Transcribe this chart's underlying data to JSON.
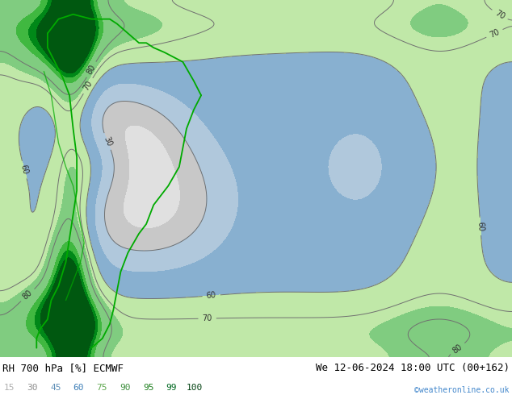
{
  "title_left": "RH 700 hPa [%] ECMWF",
  "title_right": "We 12-06-2024 18:00 UTC (00+162)",
  "credit": "©weatheronline.co.uk",
  "legend_values": [
    15,
    30,
    45,
    60,
    75,
    90,
    95,
    99,
    100
  ],
  "legend_label_colors": [
    "#b0b0b0",
    "#909090",
    "#6090b8",
    "#4080b8",
    "#60a850",
    "#409040",
    "#208020",
    "#006820",
    "#004010"
  ],
  "background_color": "#ffffff",
  "fig_width": 6.34,
  "fig_height": 4.9,
  "dpi": 100,
  "map_colors": [
    "#e0e0e0",
    "#c8c8c8",
    "#b0c8dc",
    "#88b0d0",
    "#c0e8a8",
    "#80cc80",
    "#40b840",
    "#008818",
    "#005810"
  ],
  "map_levels": [
    0,
    15,
    30,
    45,
    60,
    75,
    90,
    95,
    99,
    100
  ],
  "contour_levels": [
    30,
    60,
    70,
    80
  ],
  "contour_color": "#707070",
  "contour_lw": 0.7,
  "label_fontsize": 7,
  "title_fontsize": 9,
  "credit_color": "#4488cc",
  "credit_fontsize": 7,
  "legend_fontsize": 8
}
